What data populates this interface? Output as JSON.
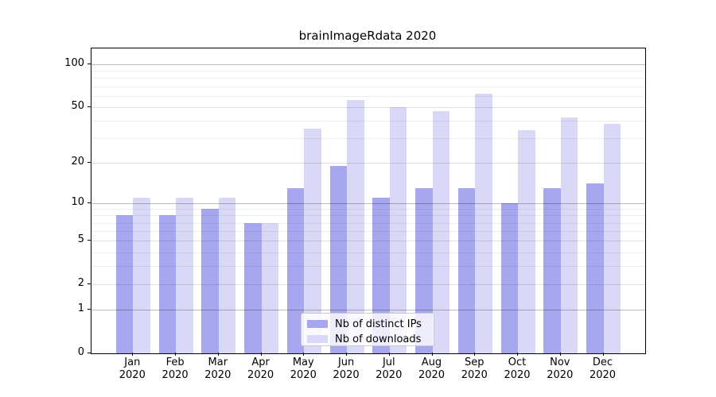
{
  "chart_data": {
    "type": "bar",
    "title": "brainImageRdata 2020",
    "months": [
      "Jan",
      "Feb",
      "Mar",
      "Apr",
      "May",
      "Jun",
      "Jul",
      "Aug",
      "Sep",
      "Oct",
      "Nov",
      "Dec"
    ],
    "year": "2020",
    "series": [
      {
        "name": "Nb of distinct IPs",
        "color": "#a7a7ef",
        "values": [
          8,
          8,
          9,
          7,
          13,
          19,
          11,
          13,
          13,
          10,
          13,
          14
        ]
      },
      {
        "name": "Nb of downloads",
        "color": "#d9d9f7",
        "values": [
          11,
          11,
          11,
          7,
          35,
          56,
          50,
          47,
          62,
          34,
          42,
          38
        ]
      }
    ],
    "y_axis": {
      "scale": "log(1+x)",
      "ticks": [
        100,
        50,
        20,
        10,
        5,
        2,
        1,
        0
      ],
      "top_value": 100
    },
    "gridlines": {
      "strong": [
        1,
        10,
        100
      ],
      "medium": [
        2,
        5,
        20,
        50
      ],
      "weak": [
        3,
        4,
        6,
        7,
        8,
        9,
        30,
        40,
        60,
        70,
        80,
        90
      ]
    },
    "legend_position": "bottom-center"
  }
}
